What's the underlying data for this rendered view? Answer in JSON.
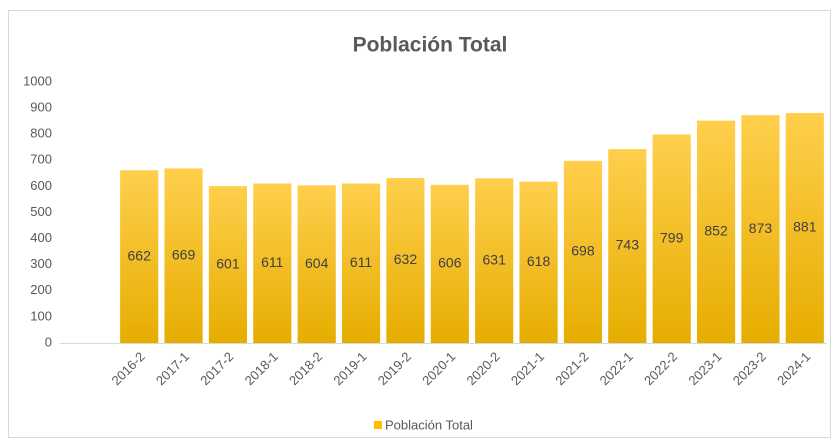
{
  "chart_data": {
    "type": "bar",
    "title": "Población Total",
    "categories": [
      "2016-2",
      "2017-1",
      "2017-2",
      "2018-1",
      "2018-2",
      "2019-1",
      "2019-2",
      "2020-1",
      "2020-2",
      "2021-1",
      "2021-2",
      "2022-1",
      "2022-2",
      "2023-1",
      "2023-2",
      "2024-1"
    ],
    "series": [
      {
        "name": "Población Total",
        "color": "#ffc000",
        "values": [
          662,
          669,
          601,
          611,
          604,
          611,
          632,
          606,
          631,
          618,
          698,
          743,
          799,
          852,
          873,
          881
        ]
      }
    ],
    "ylim": [
      0,
      1000
    ],
    "yticks": [
      0,
      100,
      200,
      300,
      400,
      500,
      600,
      700,
      800,
      900,
      1000
    ],
    "grid": false,
    "legend": "bottom",
    "data_labels": true
  }
}
